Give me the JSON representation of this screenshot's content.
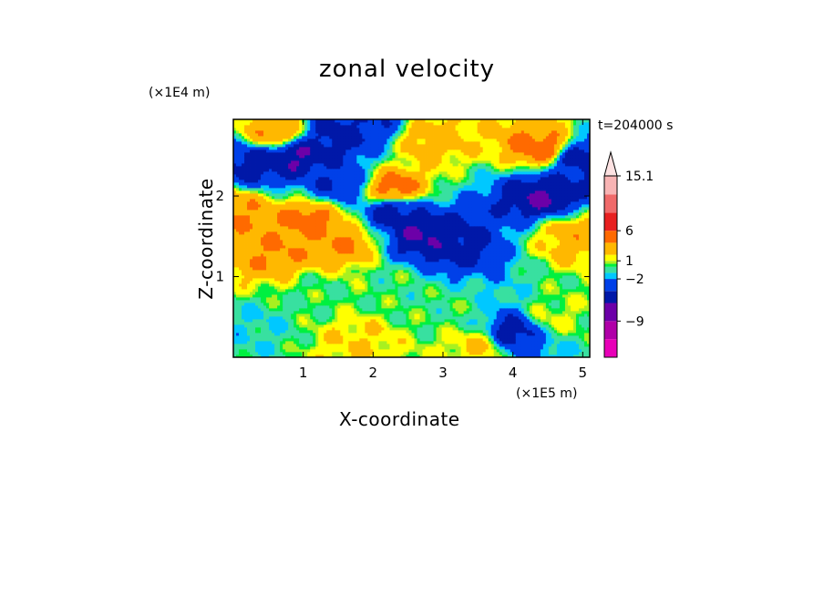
{
  "chart_data": {
    "type": "heatmap",
    "title": "zonal velocity",
    "xlabel": "X-coordinate",
    "ylabel": "Z-coordinate",
    "x_unit": "(×1E5 m)",
    "y_unit": "(×1E4 m)",
    "time_label": "t=204000 s",
    "xlim": [
      0,
      5.1
    ],
    "ylim": [
      0,
      2.95
    ],
    "x_ticks": [
      1,
      2,
      3,
      4,
      5
    ],
    "y_ticks": [
      1,
      2
    ],
    "colorbar": {
      "extend": "max",
      "tick_labels": [
        {
          "label": "15.1",
          "value": 15.1
        },
        {
          "label": "6",
          "value": 6
        },
        {
          "label": "1",
          "value": 1
        },
        {
          "label": "−2",
          "value": -2
        },
        {
          "label": "−9",
          "value": -9
        }
      ],
      "levels": [
        {
          "min": -15,
          "max": -12,
          "color": "#e800b8"
        },
        {
          "min": -12,
          "max": -9,
          "color": "#b000a8"
        },
        {
          "min": -9,
          "max": -6,
          "color": "#6c00a8"
        },
        {
          "min": -6,
          "max": -4,
          "color": "#0018a8"
        },
        {
          "min": -4,
          "max": -2,
          "color": "#0040e8"
        },
        {
          "min": -2,
          "max": -1,
          "color": "#00c8ff"
        },
        {
          "min": -1,
          "max": 0,
          "color": "#38e0a0"
        },
        {
          "min": 0,
          "max": 0.5,
          "color": "#00f040"
        },
        {
          "min": 0.5,
          "max": 1,
          "color": "#a8f020"
        },
        {
          "min": 1,
          "max": 2,
          "color": "#ffff00"
        },
        {
          "min": 2,
          "max": 4,
          "color": "#ffb800"
        },
        {
          "min": 4,
          "max": 6,
          "color": "#ff6a00"
        },
        {
          "min": 6,
          "max": 9,
          "color": "#e82020"
        },
        {
          "min": 9,
          "max": 12,
          "color": "#f06a6a"
        },
        {
          "min": 12,
          "max": 15.1,
          "color": "#f8b4b4"
        }
      ],
      "extend_color": "#fde2e2"
    },
    "field_features": [
      {
        "x": 0.3,
        "z": 2.4,
        "value": -5
      },
      {
        "x": 0.9,
        "z": 2.5,
        "value": -6
      },
      {
        "x": 1.5,
        "z": 2.75,
        "value": -5
      },
      {
        "x": 1.9,
        "z": 2.9,
        "value": -4
      },
      {
        "x": 1.5,
        "z": 2.15,
        "value": -4
      },
      {
        "x": 2.3,
        "z": 1.8,
        "value": -5
      },
      {
        "x": 2.7,
        "z": 1.5,
        "value": -6
      },
      {
        "x": 3.1,
        "z": 1.4,
        "value": -5
      },
      {
        "x": 4.4,
        "z": 2.0,
        "value": -6
      },
      {
        "x": 4.95,
        "z": 2.45,
        "value": -5
      },
      {
        "x": 2.3,
        "z": 2.1,
        "value": 5
      },
      {
        "x": 1.1,
        "z": 1.7,
        "value": 5
      },
      {
        "x": 4.4,
        "z": 2.6,
        "value": 5
      },
      {
        "x": 0.6,
        "z": 1.3,
        "value": 4
      },
      {
        "x": 1.6,
        "z": 1.4,
        "value": 4
      },
      {
        "x": 0.05,
        "z": 1.8,
        "value": 4
      },
      {
        "x": 0.6,
        "z": 2.8,
        "value": 4
      },
      {
        "x": 4.85,
        "z": 1.5,
        "value": 3
      },
      {
        "x": 2.8,
        "z": 2.7,
        "value": 3
      },
      {
        "x": 1.2,
        "z": 0.8,
        "value": 0
      },
      {
        "x": 2.3,
        "z": 0.9,
        "value": 0
      },
      {
        "x": 3.0,
        "z": 0.6,
        "value": 0
      },
      {
        "x": 1.8,
        "z": 0.2,
        "value": 2
      },
      {
        "x": 3.5,
        "z": 0.15,
        "value": 2
      },
      {
        "x": 4.6,
        "z": 0.5,
        "value": 1
      },
      {
        "x": 0.3,
        "z": 0.4,
        "value": -1
      },
      {
        "x": 4.0,
        "z": 0.3,
        "value": -5
      }
    ]
  }
}
